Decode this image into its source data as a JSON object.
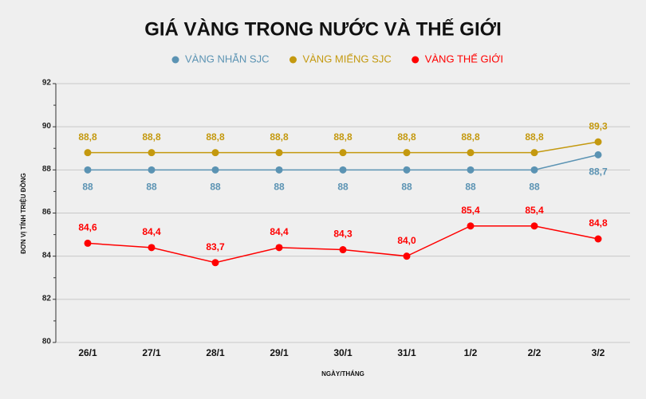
{
  "chart_data": {
    "type": "line",
    "title": "GIÁ VÀNG TRONG NƯỚC VÀ THẾ GIỚI",
    "x_label": "NGÀY/THÁNG",
    "y_label": "ĐƠN VỊ TÍNH TRIỆU ĐỒNG",
    "categories": [
      "26/1",
      "27/1",
      "28/1",
      "29/1",
      "30/1",
      "31/1",
      "1/2",
      "2/2",
      "3/2"
    ],
    "ylim": [
      80,
      92
    ],
    "yticks": [
      80,
      82,
      84,
      86,
      88,
      90,
      92
    ],
    "minor_yticks": [
      81,
      83,
      85,
      87,
      89,
      91
    ],
    "grid": true,
    "series": [
      {
        "name": "VÀNG NHẪN SJC",
        "color": "#5b93b3",
        "label_position": "below",
        "values": [
          88,
          88,
          88,
          88,
          88,
          88,
          88,
          88,
          88.7
        ],
        "value_labels": [
          "88",
          "88",
          "88",
          "88",
          "88",
          "88",
          "88",
          "88",
          "88,7"
        ]
      },
      {
        "name": "VÀNG MIẾNG SJC",
        "color": "#c4990f",
        "label_position": "above",
        "values": [
          88.8,
          88.8,
          88.8,
          88.8,
          88.8,
          88.8,
          88.8,
          88.8,
          89.3
        ],
        "value_labels": [
          "88,8",
          "88,8",
          "88,8",
          "88,8",
          "88,8",
          "88,8",
          "88,8",
          "88,8",
          "89,3"
        ]
      },
      {
        "name": "VÀNG THẾ GIỚI",
        "color": "#ff0000",
        "label_position": "above",
        "values": [
          84.6,
          84.4,
          83.7,
          84.4,
          84.3,
          84.0,
          85.4,
          85.4,
          84.8
        ],
        "value_labels": [
          "84,6",
          "84,4",
          "83,7",
          "84,4",
          "84,3",
          "84,0",
          "85,4",
          "85,4",
          "84,8"
        ]
      }
    ]
  }
}
